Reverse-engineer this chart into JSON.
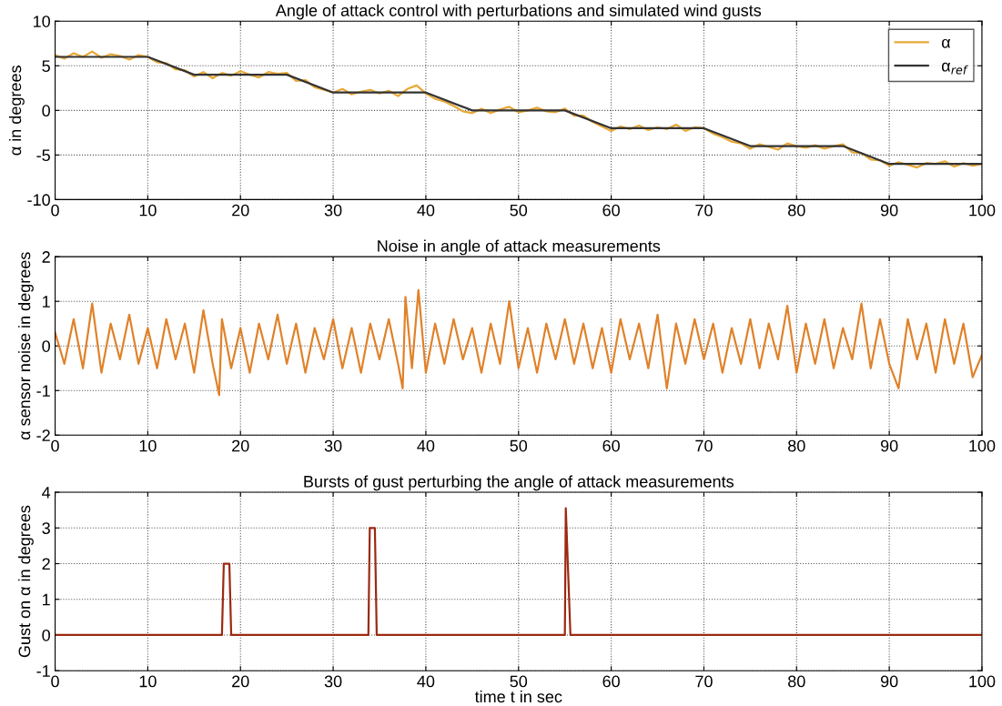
{
  "chart_data": [
    {
      "type": "line",
      "title": "Angle of attack control with perturbations and simulated wind gusts",
      "ylabel": "α in degrees",
      "xlim": [
        0,
        100
      ],
      "xticks": [
        0,
        10,
        20,
        30,
        40,
        50,
        60,
        70,
        80,
        90,
        100
      ],
      "ylim": [
        -10,
        10
      ],
      "yticks": [
        -10,
        -5,
        0,
        5,
        10
      ],
      "grid": true,
      "legend": "top right",
      "series": [
        {
          "name": "α",
          "color": "#e8a836",
          "x": [
            0,
            1,
            2,
            3,
            4,
            5,
            6,
            7,
            8,
            9,
            10,
            11,
            12,
            13,
            14,
            15,
            16,
            17,
            18,
            19,
            20,
            21,
            22,
            23,
            24,
            25,
            26,
            27,
            28,
            29,
            30,
            31,
            32,
            33,
            34,
            35,
            36,
            37,
            38,
            39,
            40,
            41,
            42,
            43,
            44,
            45,
            46,
            47,
            48,
            49,
            50,
            51,
            52,
            53,
            54,
            55,
            56,
            57,
            58,
            59,
            60,
            61,
            62,
            63,
            64,
            65,
            66,
            67,
            68,
            69,
            70,
            71,
            72,
            73,
            74,
            75,
            76,
            77,
            78,
            79,
            80,
            81,
            82,
            83,
            84,
            85,
            86,
            87,
            88,
            89,
            90,
            91,
            92,
            93,
            94,
            95,
            96,
            97,
            98,
            99,
            100
          ],
          "values": [
            6.2,
            5.8,
            6.4,
            6.0,
            6.6,
            5.9,
            6.3,
            6.1,
            5.7,
            6.2,
            6.0,
            5.4,
            5.3,
            4.6,
            4.5,
            3.8,
            4.3,
            3.6,
            4.2,
            3.9,
            4.4,
            4.0,
            3.7,
            4.3,
            4.1,
            4.2,
            3.3,
            3.4,
            2.6,
            2.3,
            2.0,
            2.4,
            1.8,
            2.1,
            2.3,
            1.9,
            2.2,
            1.6,
            2.4,
            2.8,
            1.9,
            1.3,
            1.0,
            0.5,
            -0.1,
            -0.3,
            0.2,
            -0.3,
            0.1,
            0.4,
            -0.2,
            0.0,
            0.3,
            -0.1,
            -0.2,
            0.2,
            -0.6,
            -0.6,
            -1.3,
            -1.8,
            -2.3,
            -1.8,
            -2.1,
            -1.7,
            -2.2,
            -1.9,
            -2.1,
            -1.6,
            -2.3,
            -1.9,
            -2.0,
            -2.6,
            -3.0,
            -3.5,
            -3.7,
            -4.3,
            -3.8,
            -4.1,
            -4.4,
            -3.7,
            -4.0,
            -4.2,
            -3.9,
            -4.3,
            -4.0,
            -3.8,
            -4.7,
            -4.8,
            -5.5,
            -5.6,
            -6.2,
            -5.8,
            -6.1,
            -6.4,
            -5.9,
            -6.0,
            -5.7,
            -6.3,
            -5.9,
            -6.2,
            -6.0
          ]
        },
        {
          "name": "α$_{ref}$",
          "color": "#333333",
          "x": [
            0,
            10,
            15,
            25,
            30,
            40,
            45,
            55,
            60,
            70,
            75,
            85,
            90,
            100
          ],
          "values": [
            6,
            6,
            4,
            4,
            2,
            2,
            0,
            0,
            -2,
            -2,
            -4,
            -4,
            -6,
            -6
          ]
        }
      ]
    },
    {
      "type": "line",
      "title": "Noise in angle of attack measurements",
      "ylabel": "α sensor noise in degrees",
      "xlim": [
        0,
        100
      ],
      "xticks": [
        0,
        10,
        20,
        30,
        40,
        50,
        60,
        70,
        80,
        90,
        100
      ],
      "ylim": [
        -2,
        2
      ],
      "yticks": [
        -2,
        -1,
        0,
        1,
        2
      ],
      "grid": true,
      "series": [
        {
          "color": "#e0822a",
          "x": [
            0,
            1,
            2,
            3,
            4,
            5,
            6,
            7,
            8,
            9,
            10,
            11,
            12,
            13,
            14,
            15,
            16,
            17,
            17.7,
            18,
            19,
            20,
            21,
            22,
            23,
            24,
            25,
            26,
            27,
            28,
            29,
            30,
            31,
            32,
            33,
            34,
            35,
            36,
            37,
            37.5,
            37.8,
            38.5,
            39.2,
            40,
            41,
            42,
            43,
            44,
            45,
            46,
            47,
            48,
            49,
            50,
            51,
            52,
            53,
            54,
            55,
            56,
            57,
            58,
            59,
            60,
            61,
            62,
            63,
            64,
            65,
            66,
            67,
            68,
            69,
            70,
            71,
            72,
            73,
            74,
            75,
            76,
            77,
            78,
            79,
            80,
            81,
            82,
            83,
            84,
            85,
            86,
            87,
            88,
            89,
            90,
            91,
            92,
            93,
            94,
            95,
            96,
            97,
            98,
            99,
            100
          ],
          "values": [
            0.3,
            -0.4,
            0.6,
            -0.5,
            0.95,
            -0.6,
            0.5,
            -0.3,
            0.7,
            -0.4,
            0.4,
            -0.5,
            0.6,
            -0.3,
            0.5,
            -0.6,
            0.8,
            -0.4,
            -1.1,
            0.6,
            -0.5,
            0.4,
            -0.6,
            0.5,
            -0.3,
            0.7,
            -0.4,
            0.5,
            -0.6,
            0.4,
            -0.3,
            0.6,
            -0.5,
            0.4,
            -0.6,
            0.5,
            -0.3,
            0.6,
            -0.4,
            -0.95,
            1.1,
            -0.5,
            1.25,
            -0.6,
            0.5,
            -0.4,
            0.6,
            -0.3,
            0.4,
            -0.6,
            0.5,
            -0.4,
            1.0,
            -0.5,
            0.4,
            -0.6,
            0.5,
            -0.3,
            0.6,
            -0.4,
            0.5,
            -0.5,
            0.4,
            -0.6,
            0.6,
            -0.3,
            0.5,
            -0.5,
            0.7,
            -0.95,
            0.5,
            -0.4,
            0.6,
            -0.3,
            0.5,
            -0.6,
            0.4,
            -0.4,
            0.6,
            -0.5,
            0.5,
            -0.3,
            0.9,
            -0.6,
            0.5,
            -0.4,
            0.6,
            -0.5,
            0.4,
            -0.3,
            0.95,
            -0.5,
            0.6,
            -0.4,
            -0.95,
            0.6,
            -0.3,
            0.5,
            -0.6,
            0.6,
            -0.4,
            0.5,
            -0.7,
            -0.2
          ]
        }
      ]
    },
    {
      "type": "line",
      "title": "Bursts of gust perturbing the angle of attack measurements",
      "xlabel": "time t in sec",
      "ylabel": "Gust on α in degrees",
      "xlim": [
        0,
        100
      ],
      "xticks": [
        0,
        10,
        20,
        30,
        40,
        50,
        60,
        70,
        80,
        90,
        100
      ],
      "ylim": [
        -1,
        4
      ],
      "yticks": [
        -1,
        0,
        1,
        2,
        3,
        4
      ],
      "grid": true,
      "series": [
        {
          "color": "#9b2a12",
          "x": [
            0,
            18.0,
            18.2,
            18.8,
            19.0,
            33.8,
            33.95,
            34.5,
            34.7,
            55.0,
            55.1,
            55.6,
            55.7,
            100
          ],
          "values": [
            0,
            0,
            2,
            2,
            0,
            0,
            3,
            3,
            0,
            0,
            3.55,
            0,
            0,
            0
          ]
        }
      ]
    }
  ]
}
